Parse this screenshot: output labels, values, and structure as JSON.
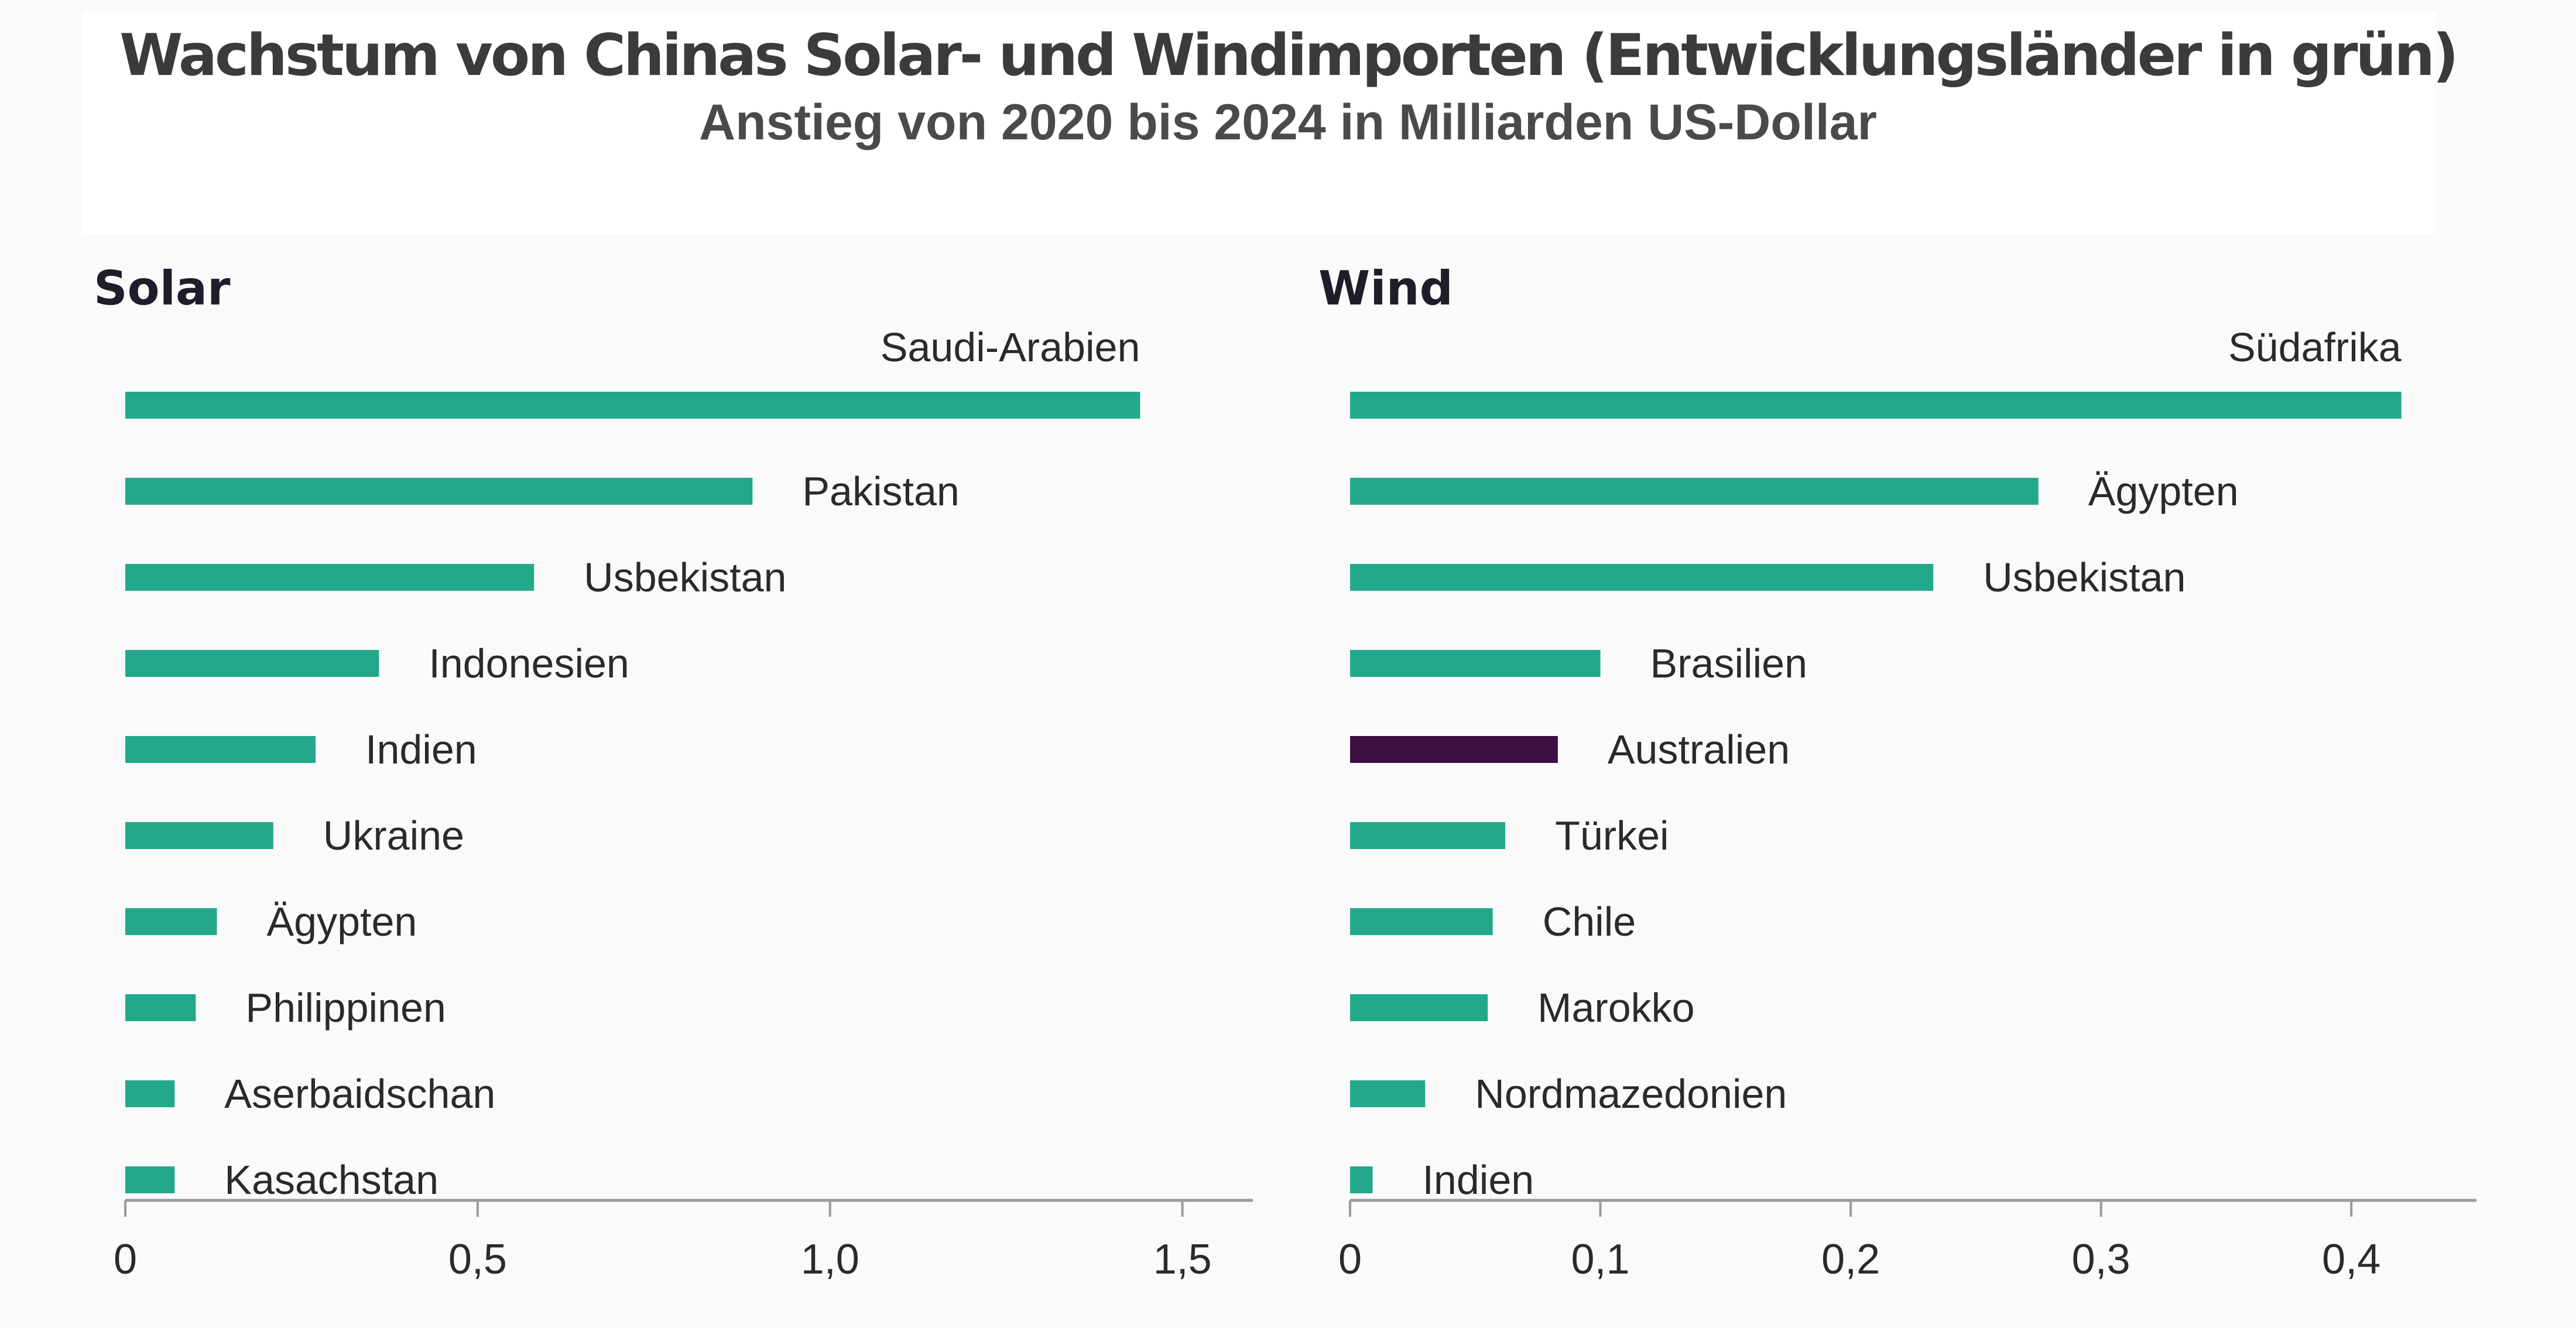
{
  "chart_data": [
    {
      "type": "bar",
      "title": "Wachstum von Chinas Solar- und Windimporten (Entwicklungsländer in grün)",
      "subtitle": "Anstieg von 2020 bis 2024 in Milliarden US-Dollar",
      "panel_title": "Solar",
      "orientation": "horizontal",
      "categories": [
        "Saudi-Arabien",
        "Pakistan",
        "Usbekistan",
        "Indonesien",
        "Indien",
        "Ukraine",
        "Ägypten",
        "Philippinen",
        "Aserbaidschan",
        "Kasachstan"
      ],
      "values": [
        1.44,
        0.89,
        0.58,
        0.36,
        0.27,
        0.21,
        0.13,
        0.1,
        0.07,
        0.07
      ],
      "colors": [
        "#23a88c",
        "#23a88c",
        "#23a88c",
        "#23a88c",
        "#23a88c",
        "#23a88c",
        "#23a88c",
        "#23a88c",
        "#23a88c",
        "#23a88c"
      ],
      "xlim": [
        0,
        1.6
      ],
      "ticks": [
        0,
        0.5,
        1.0,
        1.5
      ],
      "tick_labels": [
        "0",
        "0,5",
        "1,0",
        "1,5"
      ],
      "grid": false
    },
    {
      "type": "bar",
      "panel_title": "Wind",
      "orientation": "horizontal",
      "categories": [
        "Südafrika",
        "Ägypten",
        "Usbekistan",
        "Brasilien",
        "Australien",
        "Türkei",
        "Chile",
        "Marokko",
        "Nordmazedonien",
        "Indien"
      ],
      "values": [
        0.42,
        0.275,
        0.233,
        0.1,
        0.083,
        0.062,
        0.057,
        0.055,
        0.03,
        0.009
      ],
      "colors": [
        "#23a88c",
        "#23a88c",
        "#23a88c",
        "#23a88c",
        "#3d1040",
        "#23a88c",
        "#23a88c",
        "#23a88c",
        "#23a88c",
        "#23a88c"
      ],
      "xlim": [
        0,
        0.45
      ],
      "ticks": [
        0,
        0.1,
        0.2,
        0.3,
        0.4
      ],
      "tick_labels": [
        "0",
        "0,1",
        "0,2",
        "0,3",
        "0,4"
      ],
      "grid": false
    }
  ]
}
